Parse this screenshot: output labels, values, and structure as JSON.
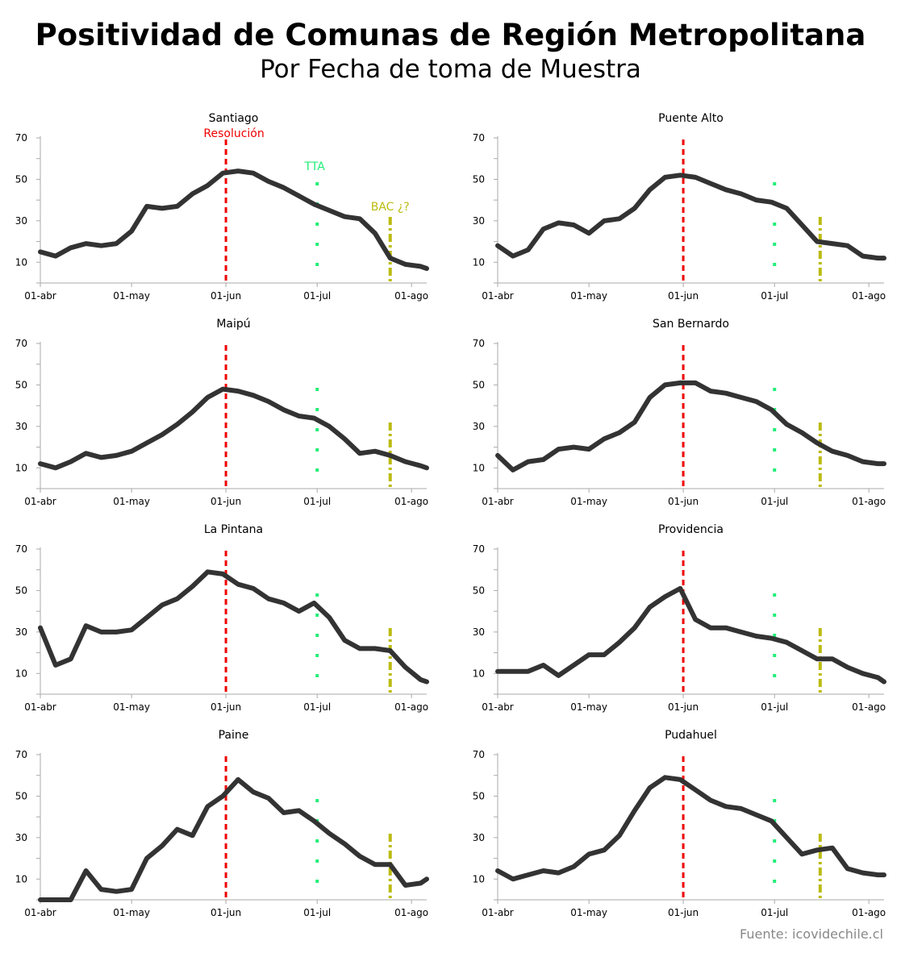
{
  "title": "Positividad de Comunas de Región Metropolitana",
  "subtitle": "Por Fecha de toma de Muestra",
  "source": "Fuente: icovidechile.cl",
  "colors": {
    "line": "#333333",
    "resolucion": "#ee0000",
    "tta": "#22ee77",
    "bac": "#bbbb11",
    "axis": "#aaaaaa",
    "source": "#888888"
  },
  "axis": {
    "x_ticks": [
      {
        "day": 0,
        "label": "01-abr"
      },
      {
        "day": 30,
        "label": "01-may"
      },
      {
        "day": 61,
        "label": "01-jun"
      },
      {
        "day": 91,
        "label": "01-jul"
      },
      {
        "day": 122,
        "label": "01-ago"
      }
    ],
    "x_range": [
      "01-abr",
      "06-ago"
    ],
    "y_ticks": [
      10,
      30,
      50,
      70
    ],
    "ylim": [
      0,
      70
    ]
  },
  "annotations": {
    "resolucion_label": "Resolución",
    "tta_label": "TTA",
    "bac_label": "BAC ¿?"
  },
  "chart_data": [
    {
      "type": "line",
      "name": "Santiago",
      "resolucion_date": "01-jun",
      "tta_date": "01-jul",
      "bac_date": "25-jul",
      "dates": [
        "01-abr",
        "06-abr",
        "11-abr",
        "16-abr",
        "21-abr",
        "26-abr",
        "01-may",
        "06-may",
        "11-may",
        "16-may",
        "21-may",
        "26-may",
        "31-may",
        "05-jun",
        "10-jun",
        "15-jun",
        "20-jun",
        "25-jun",
        "30-jun",
        "05-jul",
        "10-jul",
        "15-jul",
        "20-jul",
        "25-jul",
        "30-jul",
        "04-ago",
        "06-ago"
      ],
      "values": [
        15,
        13,
        17,
        19,
        18,
        19,
        25,
        37,
        36,
        37,
        43,
        47,
        53,
        54,
        53,
        49,
        46,
        42,
        38,
        35,
        32,
        31,
        24,
        12,
        9,
        8,
        7
      ]
    },
    {
      "type": "line",
      "name": "Puente Alto",
      "resolucion_date": "01-jun",
      "tta_date": "01-jul",
      "bac_date": "16-jul",
      "dates": [
        "01-abr",
        "06-abr",
        "11-abr",
        "16-abr",
        "21-abr",
        "26-abr",
        "01-may",
        "06-may",
        "11-may",
        "16-may",
        "21-may",
        "26-may",
        "31-may",
        "05-jun",
        "10-jun",
        "15-jun",
        "20-jun",
        "25-jun",
        "30-jun",
        "05-jul",
        "10-jul",
        "15-jul",
        "20-jul",
        "25-jul",
        "30-jul",
        "04-ago",
        "06-ago"
      ],
      "values": [
        18,
        13,
        16,
        26,
        29,
        28,
        24,
        30,
        31,
        36,
        45,
        51,
        52,
        51,
        48,
        45,
        43,
        40,
        39,
        36,
        28,
        20,
        19,
        18,
        13,
        12,
        12
      ]
    },
    {
      "type": "line",
      "name": "Maipú",
      "resolucion_date": "01-jun",
      "tta_date": "01-jul",
      "bac_date": "25-jul",
      "dates": [
        "01-abr",
        "06-abr",
        "11-abr",
        "16-abr",
        "21-abr",
        "26-abr",
        "01-may",
        "06-may",
        "11-may",
        "16-may",
        "21-may",
        "26-may",
        "31-may",
        "05-jun",
        "10-jun",
        "15-jun",
        "20-jun",
        "25-jun",
        "30-jun",
        "05-jul",
        "10-jul",
        "15-jul",
        "20-jul",
        "25-jul",
        "30-jul",
        "04-ago",
        "06-ago"
      ],
      "values": [
        12,
        10,
        13,
        17,
        15,
        16,
        18,
        22,
        26,
        31,
        37,
        44,
        48,
        47,
        45,
        42,
        38,
        35,
        34,
        30,
        24,
        17,
        18,
        16,
        13,
        11,
        10
      ]
    },
    {
      "type": "line",
      "name": "San Bernardo",
      "resolucion_date": "01-jun",
      "tta_date": "01-jul",
      "bac_date": "16-jul",
      "dates": [
        "01-abr",
        "06-abr",
        "11-abr",
        "16-abr",
        "21-abr",
        "26-abr",
        "01-may",
        "06-may",
        "11-may",
        "16-may",
        "21-may",
        "26-may",
        "31-may",
        "05-jun",
        "10-jun",
        "15-jun",
        "20-jun",
        "25-jun",
        "30-jun",
        "05-jul",
        "10-jul",
        "15-jul",
        "20-jul",
        "25-jul",
        "30-jul",
        "04-ago",
        "06-ago"
      ],
      "values": [
        16,
        9,
        13,
        14,
        19,
        20,
        19,
        24,
        27,
        32,
        44,
        50,
        51,
        51,
        47,
        46,
        44,
        42,
        38,
        31,
        27,
        22,
        18,
        16,
        13,
        12,
        12
      ]
    },
    {
      "type": "line",
      "name": "La Pintana",
      "resolucion_date": "01-jun",
      "tta_date": "01-jul",
      "bac_date": "25-jul",
      "dates": [
        "01-abr",
        "06-abr",
        "11-abr",
        "16-abr",
        "21-abr",
        "26-abr",
        "01-may",
        "06-may",
        "11-may",
        "16-may",
        "21-may",
        "26-may",
        "31-may",
        "05-jun",
        "10-jun",
        "15-jun",
        "20-jun",
        "25-jun",
        "30-jun",
        "05-jul",
        "10-jul",
        "15-jul",
        "20-jul",
        "25-jul",
        "30-jul",
        "04-ago",
        "06-ago"
      ],
      "values": [
        32,
        14,
        17,
        33,
        30,
        30,
        31,
        37,
        43,
        46,
        52,
        59,
        58,
        53,
        51,
        46,
        44,
        40,
        44,
        37,
        26,
        22,
        22,
        21,
        13,
        7,
        6
      ]
    },
    {
      "type": "line",
      "name": "Providencia",
      "resolucion_date": "01-jun",
      "tta_date": "01-jul",
      "bac_date": "16-jul",
      "dates": [
        "01-abr",
        "06-abr",
        "11-abr",
        "16-abr",
        "21-abr",
        "26-abr",
        "01-may",
        "06-may",
        "11-may",
        "16-may",
        "21-may",
        "26-may",
        "31-may",
        "05-jun",
        "10-jun",
        "15-jun",
        "20-jun",
        "25-jun",
        "30-jun",
        "05-jul",
        "10-jul",
        "15-jul",
        "20-jul",
        "25-jul",
        "30-jul",
        "04-ago",
        "06-ago"
      ],
      "values": [
        11,
        11,
        11,
        14,
        9,
        14,
        19,
        19,
        25,
        32,
        42,
        47,
        51,
        36,
        32,
        32,
        30,
        28,
        27,
        25,
        21,
        17,
        17,
        13,
        10,
        8,
        6
      ]
    },
    {
      "type": "line",
      "name": "Paine",
      "resolucion_date": "01-jun",
      "tta_date": "01-jul",
      "bac_date": "25-jul",
      "dates": [
        "01-abr",
        "06-abr",
        "11-abr",
        "16-abr",
        "21-abr",
        "26-abr",
        "01-may",
        "06-may",
        "11-may",
        "16-may",
        "21-may",
        "26-may",
        "31-may",
        "05-jun",
        "10-jun",
        "15-jun",
        "20-jun",
        "25-jun",
        "30-jun",
        "05-jul",
        "10-jul",
        "15-jul",
        "20-jul",
        "25-jul",
        "30-jul",
        "04-ago",
        "06-ago"
      ],
      "values": [
        0,
        0,
        0,
        14,
        5,
        4,
        5,
        20,
        26,
        34,
        31,
        45,
        50,
        58,
        52,
        49,
        42,
        43,
        38,
        32,
        27,
        21,
        17,
        17,
        7,
        8,
        10
      ]
    },
    {
      "type": "line",
      "name": "Pudahuel",
      "resolucion_date": "01-jun",
      "tta_date": "01-jul",
      "bac_date": "16-jul",
      "dates": [
        "01-abr",
        "06-abr",
        "11-abr",
        "16-abr",
        "21-abr",
        "26-abr",
        "01-may",
        "06-may",
        "11-may",
        "16-may",
        "21-may",
        "26-may",
        "31-may",
        "05-jun",
        "10-jun",
        "15-jun",
        "20-jun",
        "25-jun",
        "30-jun",
        "05-jul",
        "10-jul",
        "15-jul",
        "20-jul",
        "25-jul",
        "30-jul",
        "04-ago",
        "06-ago"
      ],
      "values": [
        14,
        10,
        12,
        14,
        13,
        16,
        22,
        24,
        31,
        43,
        54,
        59,
        58,
        53,
        48,
        45,
        44,
        41,
        38,
        30,
        22,
        24,
        25,
        15,
        13,
        12,
        12
      ]
    }
  ]
}
